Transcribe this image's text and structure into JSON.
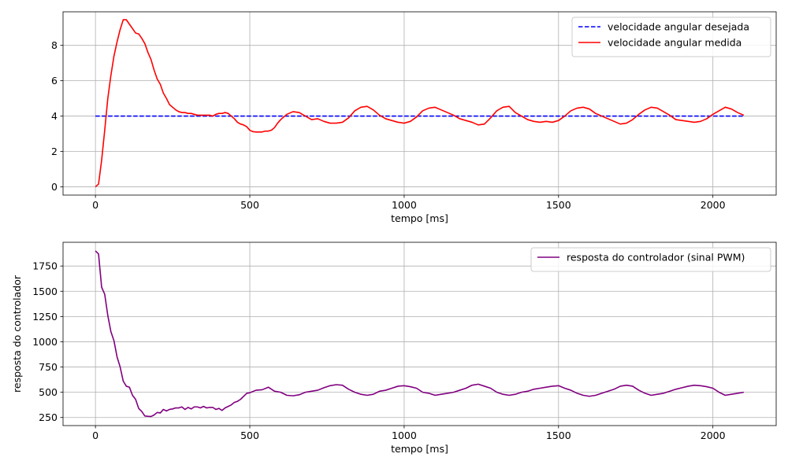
{
  "chart_data": [
    {
      "type": "line",
      "xlabel": "tempo [ms]",
      "ylabel": "",
      "xlim": [
        -105,
        2205
      ],
      "ylim": [
        -0.47,
        9.9
      ],
      "xticks": [
        0,
        500,
        1000,
        1500,
        2000
      ],
      "yticks": [
        0,
        2,
        4,
        6,
        8
      ],
      "grid": true,
      "legend_position": "upper-right",
      "series": [
        {
          "name": "velocidade angular desejada",
          "color": "#0000ff",
          "style": "dashed",
          "x": [
            0,
            2100
          ],
          "y": [
            4,
            4
          ]
        },
        {
          "name": "velocidade angular medida",
          "color": "#ff0000",
          "style": "solid",
          "x": [
            0,
            10,
            20,
            30,
            40,
            50,
            60,
            70,
            80,
            90,
            100,
            110,
            120,
            130,
            140,
            150,
            160,
            170,
            180,
            190,
            200,
            210,
            220,
            230,
            240,
            250,
            260,
            270,
            280,
            290,
            300,
            310,
            320,
            330,
            340,
            350,
            360,
            370,
            380,
            390,
            400,
            410,
            420,
            430,
            440,
            450,
            460,
            470,
            480,
            490,
            500,
            510,
            520,
            530,
            540,
            550,
            560,
            570,
            580,
            590,
            600,
            620,
            640,
            660,
            680,
            700,
            720,
            740,
            760,
            780,
            800,
            820,
            840,
            860,
            880,
            900,
            920,
            940,
            960,
            980,
            1000,
            1020,
            1040,
            1060,
            1080,
            1100,
            1120,
            1140,
            1160,
            1180,
            1200,
            1220,
            1240,
            1260,
            1280,
            1300,
            1320,
            1340,
            1360,
            1380,
            1400,
            1420,
            1440,
            1460,
            1480,
            1500,
            1520,
            1540,
            1560,
            1580,
            1600,
            1620,
            1640,
            1660,
            1680,
            1700,
            1720,
            1740,
            1760,
            1780,
            1800,
            1820,
            1840,
            1860,
            1880,
            1900,
            1920,
            1940,
            1960,
            1980,
            2000,
            2020,
            2040,
            2060,
            2080,
            2100
          ],
          "y": [
            0,
            0.15,
            1.5,
            3.2,
            5.0,
            6.3,
            7.4,
            8.2,
            8.9,
            9.45,
            9.45,
            9.2,
            8.95,
            8.7,
            8.65,
            8.4,
            8.1,
            7.6,
            7.2,
            6.6,
            6.1,
            5.8,
            5.3,
            5.0,
            4.65,
            4.5,
            4.35,
            4.25,
            4.2,
            4.2,
            4.15,
            4.15,
            4.1,
            4.05,
            4.05,
            4.05,
            4.05,
            4.05,
            4.0,
            4.1,
            4.15,
            4.15,
            4.2,
            4.15,
            4.0,
            3.85,
            3.65,
            3.55,
            3.5,
            3.4,
            3.2,
            3.12,
            3.1,
            3.1,
            3.1,
            3.15,
            3.15,
            3.2,
            3.35,
            3.6,
            3.8,
            4.1,
            4.25,
            4.2,
            4.0,
            3.8,
            3.85,
            3.7,
            3.6,
            3.6,
            3.65,
            3.9,
            4.3,
            4.5,
            4.55,
            4.35,
            4.05,
            3.85,
            3.75,
            3.65,
            3.6,
            3.7,
            3.95,
            4.3,
            4.45,
            4.5,
            4.35,
            4.2,
            4.05,
            3.85,
            3.75,
            3.65,
            3.5,
            3.55,
            3.9,
            4.3,
            4.5,
            4.55,
            4.2,
            4.0,
            3.8,
            3.7,
            3.65,
            3.7,
            3.65,
            3.75,
            4.0,
            4.3,
            4.45,
            4.5,
            4.4,
            4.15,
            4.0,
            3.85,
            3.7,
            3.55,
            3.6,
            3.8,
            4.1,
            4.35,
            4.5,
            4.45,
            4.25,
            4.05,
            3.8,
            3.75,
            3.7,
            3.65,
            3.7,
            3.85,
            4.1,
            4.3,
            4.5,
            4.4,
            4.2,
            4.05
          ]
        }
      ]
    },
    {
      "type": "line",
      "xlabel": "tempo [ms]",
      "ylabel": "resposta do controlador",
      "xlim": [
        -105,
        2205
      ],
      "ylim": [
        170,
        1985
      ],
      "xticks": [
        0,
        500,
        1000,
        1500,
        2000
      ],
      "yticks": [
        250,
        500,
        750,
        1000,
        1250,
        1500,
        1750
      ],
      "grid": true,
      "legend_position": "upper-right",
      "series": [
        {
          "name": "resposta do controlador (sinal PWM)",
          "color": "#800080",
          "style": "solid",
          "x": [
            0,
            10,
            20,
            30,
            40,
            50,
            60,
            70,
            80,
            90,
            100,
            110,
            120,
            130,
            140,
            150,
            160,
            170,
            180,
            190,
            200,
            210,
            220,
            230,
            240,
            250,
            260,
            270,
            280,
            290,
            300,
            310,
            320,
            330,
            340,
            350,
            360,
            370,
            380,
            390,
            400,
            410,
            420,
            430,
            440,
            450,
            460,
            470,
            480,
            490,
            500,
            520,
            540,
            560,
            580,
            600,
            620,
            640,
            660,
            680,
            700,
            720,
            740,
            760,
            780,
            800,
            820,
            840,
            860,
            880,
            900,
            920,
            940,
            960,
            980,
            1000,
            1020,
            1040,
            1060,
            1080,
            1100,
            1120,
            1140,
            1160,
            1180,
            1200,
            1220,
            1240,
            1260,
            1280,
            1300,
            1320,
            1340,
            1360,
            1380,
            1400,
            1420,
            1440,
            1460,
            1480,
            1500,
            1520,
            1540,
            1560,
            1580,
            1600,
            1620,
            1640,
            1660,
            1680,
            1700,
            1720,
            1740,
            1760,
            1780,
            1800,
            1820,
            1840,
            1860,
            1880,
            1900,
            1920,
            1940,
            1960,
            1980,
            2000,
            2020,
            2040,
            2060,
            2080,
            2100
          ],
          "y": [
            1900,
            1870,
            1540,
            1470,
            1260,
            1100,
            1010,
            850,
            750,
            610,
            560,
            550,
            470,
            430,
            340,
            310,
            265,
            262,
            260,
            275,
            300,
            295,
            330,
            315,
            330,
            335,
            345,
            345,
            355,
            330,
            350,
            335,
            355,
            355,
            345,
            360,
            345,
            350,
            350,
            330,
            340,
            320,
            345,
            360,
            375,
            400,
            410,
            430,
            460,
            490,
            495,
            520,
            525,
            550,
            510,
            500,
            470,
            465,
            475,
            500,
            510,
            520,
            545,
            565,
            575,
            570,
            530,
            500,
            480,
            470,
            480,
            510,
            520,
            540,
            560,
            565,
            555,
            540,
            500,
            490,
            470,
            480,
            490,
            500,
            520,
            540,
            570,
            580,
            560,
            540,
            500,
            480,
            470,
            480,
            500,
            510,
            530,
            540,
            550,
            560,
            565,
            540,
            520,
            490,
            470,
            460,
            470,
            490,
            510,
            530,
            560,
            570,
            560,
            520,
            490,
            470,
            480,
            490,
            510,
            530,
            545,
            560,
            570,
            565,
            555,
            540,
            500,
            470,
            480,
            490,
            500
          ]
        }
      ]
    }
  ]
}
